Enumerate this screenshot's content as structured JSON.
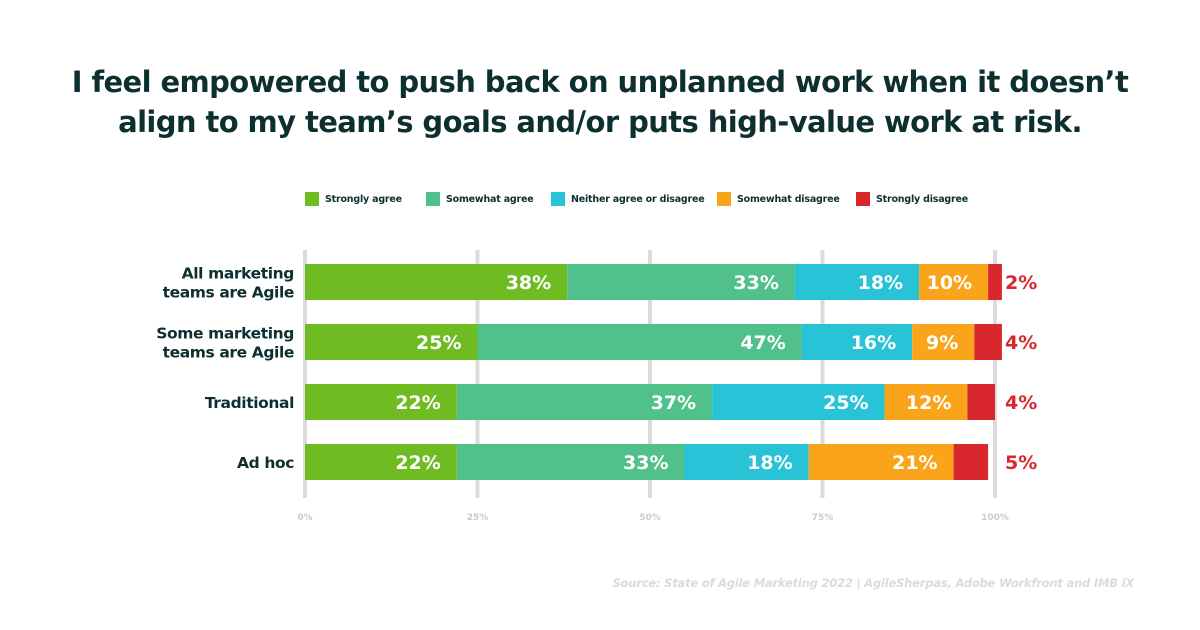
{
  "title": {
    "line1": "I feel empowered to push back on unplanned work when it doesn’t",
    "line2": "align to my team’s goals and/or puts high-value work at risk."
  },
  "source": "Source: State of Agile Marketing 2022 | AgileSherpas, Adobe Workfront and IMB iX",
  "chart_data": {
    "type": "bar",
    "orientation": "horizontal",
    "stacked": true,
    "title": "I feel empowered to push back on unplanned work when it doesn’t align to my team’s goals and/or puts high-value work at risk.",
    "categories": [
      [
        "All marketing",
        "teams are Agile"
      ],
      [
        "Some marketing",
        "teams are Agile"
      ],
      [
        "Traditional"
      ],
      [
        "Ad hoc"
      ]
    ],
    "series": [
      {
        "name": "Strongly agree",
        "color": "#6fbb22",
        "values": [
          38,
          25,
          22,
          22
        ]
      },
      {
        "name": "Somewhat agree",
        "color": "#50c18b",
        "values": [
          33,
          47,
          37,
          33
        ]
      },
      {
        "name": "Neither agree or disagree",
        "color": "#29c3d8",
        "values": [
          18,
          16,
          25,
          18
        ]
      },
      {
        "name": "Somewhat disagree",
        "color": "#f9a41b",
        "values": [
          10,
          9,
          12,
          21
        ]
      },
      {
        "name": "Strongly disagree",
        "color": "#d8282e",
        "values": [
          2,
          4,
          4,
          5
        ]
      }
    ],
    "value_labels": [
      [
        "38%",
        "33%",
        "18%",
        "10%",
        "2%"
      ],
      [
        "25%",
        "47%",
        "16%",
        "9%",
        "4%"
      ],
      [
        "22%",
        "37%",
        "25%",
        "12%",
        "4%"
      ],
      [
        "22%",
        "33%",
        "18%",
        "21%",
        "5%"
      ]
    ],
    "x_ticks": [
      "0%",
      "25%",
      "50%",
      "75%",
      "100%"
    ],
    "xlim": [
      0,
      100
    ],
    "grid": true,
    "legend_position": "top"
  }
}
